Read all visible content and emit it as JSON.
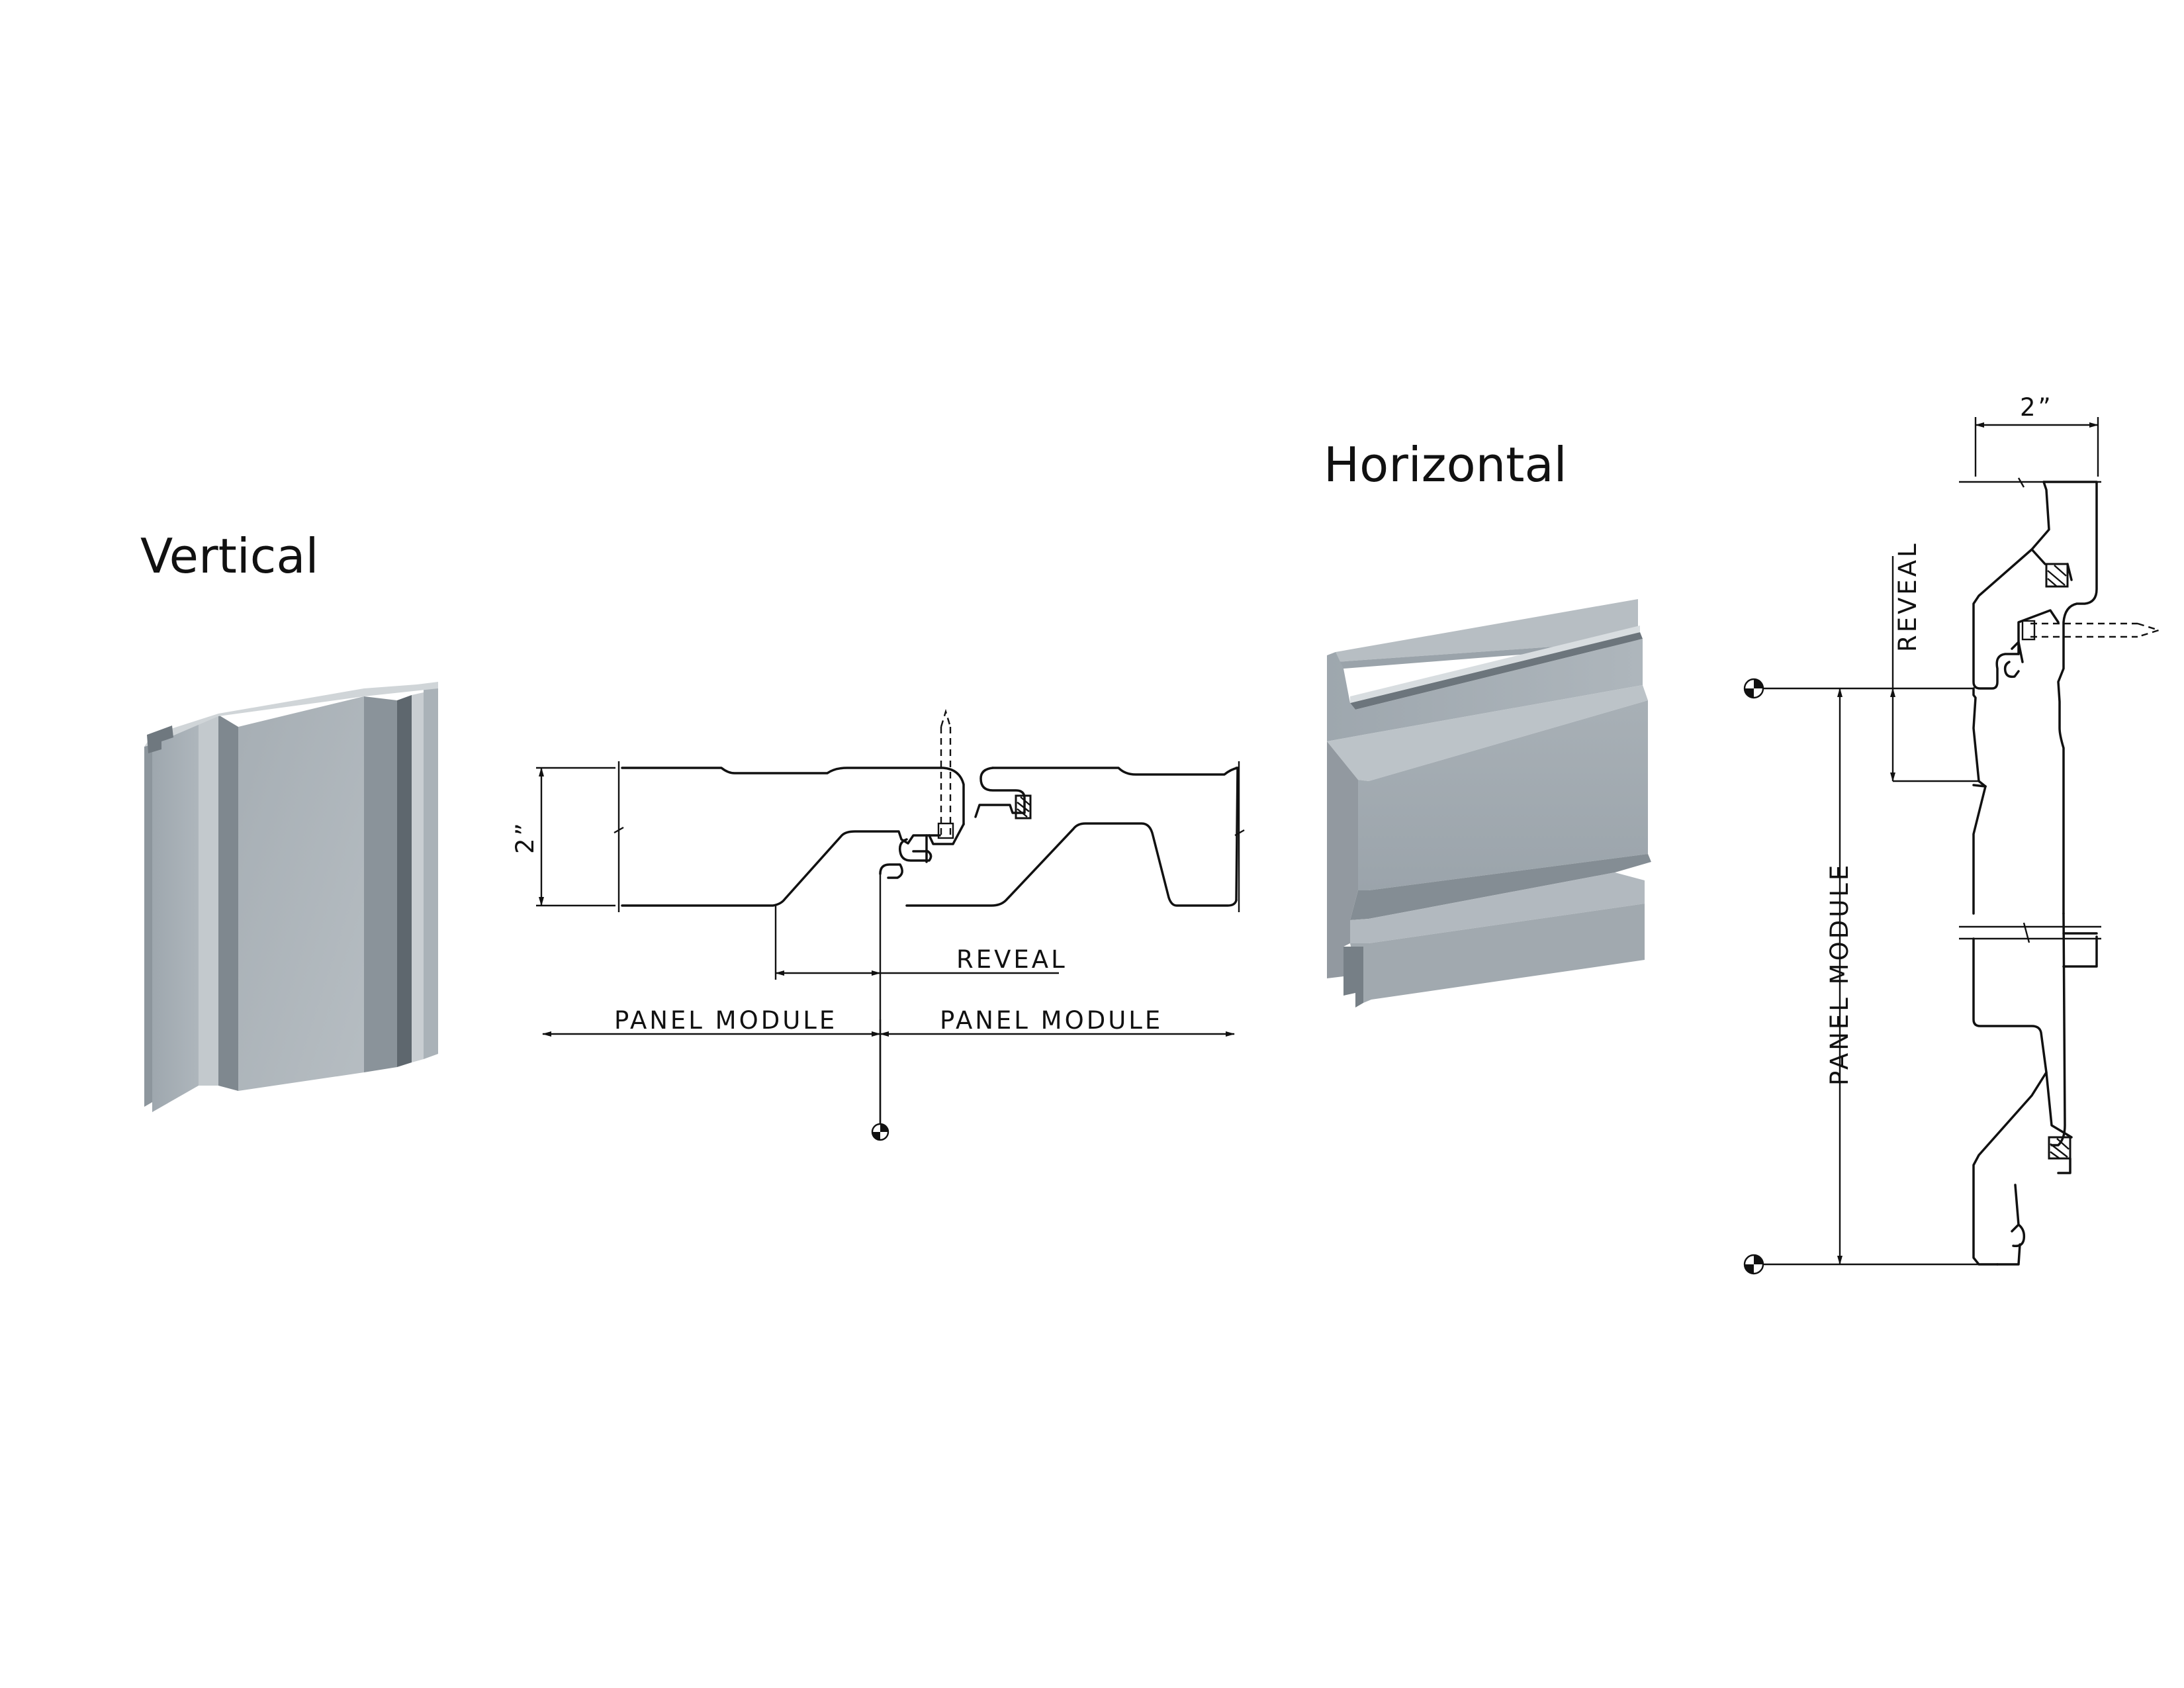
{
  "headings": {
    "vertical": "Vertical",
    "horizontal": "Horizontal"
  },
  "vertical_detail": {
    "dim_height": "2”",
    "reveal": "REVEAL",
    "panel_module_left": "PANEL MODULE",
    "panel_module_right": "PANEL MODULE"
  },
  "horizontal_detail": {
    "dim_width": "2”",
    "reveal": "REVEAL",
    "panel_module": "PANEL MODULE"
  },
  "colors": {
    "panel_light": "#b4bcc2",
    "panel_mid": "#9aa3aa",
    "panel_dark": "#6d767d",
    "line": "#111111"
  }
}
